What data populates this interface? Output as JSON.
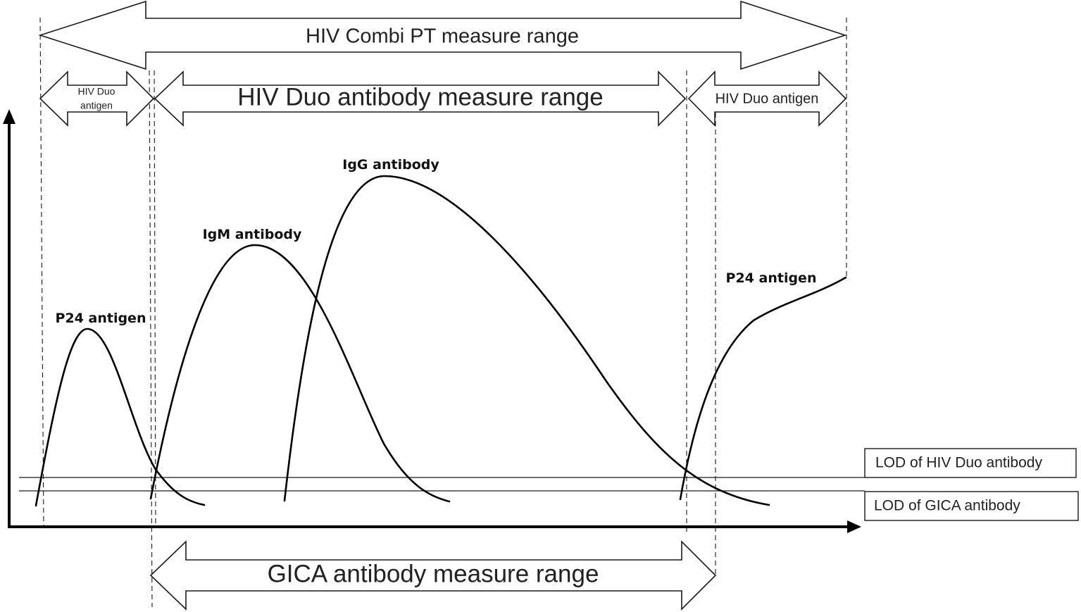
{
  "ranges": {
    "combi_pt": "HIV Combi PT measure range",
    "duo_antigen_left": [
      "HIV Duo",
      "antigen"
    ],
    "duo_antibody": "HIV Duo antibody measure range",
    "duo_antigen_right": "HIV Duo antigen",
    "gica_antibody": "GICA antibody measure range"
  },
  "curves": {
    "p24_early": "P24 antigen",
    "igm": "IgM antibody",
    "igg": "IgG antibody",
    "p24_late": "P24 antigen"
  },
  "lod": {
    "duo_antibody": "LOD of HIV Duo antibody",
    "gica_antibody": "LOD of GICA antibody"
  }
}
